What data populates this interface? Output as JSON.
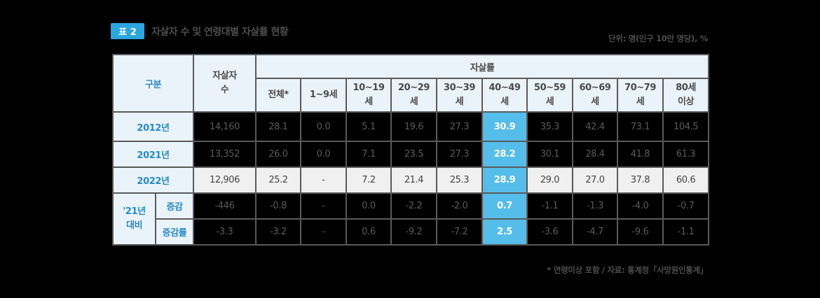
{
  "header": {
    "badge": "표 2",
    "title": "자살자 수 및 연령대별 자살률 현황",
    "unit": "단위: 명(인구 10만 명당), %"
  },
  "table": {
    "col_group": "구분",
    "col_count_line1": "자살자",
    "col_count_line2": "수",
    "col_rate_group": "자살률",
    "rate_columns": [
      {
        "line1": "전체*",
        "line2": ""
      },
      {
        "line1": "1~9세",
        "line2": ""
      },
      {
        "line1": "10~19",
        "line2": "세"
      },
      {
        "line1": "20~29",
        "line2": "세"
      },
      {
        "line1": "30~39",
        "line2": "세"
      },
      {
        "line1": "40~49",
        "line2": "세"
      },
      {
        "line1": "50~59",
        "line2": "세"
      },
      {
        "line1": "60~69",
        "line2": "세"
      },
      {
        "line1": "70~79",
        "line2": "세"
      },
      {
        "line1": "80세",
        "line2": "이상"
      }
    ],
    "highlight_column_index": 5,
    "highlight_color": "#55bde9",
    "rows": [
      {
        "label": "2012년",
        "count": "14,160",
        "rates": [
          "28.1",
          "0.0",
          "5.1",
          "19.6",
          "27.3",
          "30.9",
          "35.3",
          "42.4",
          "73.1",
          "104.5"
        ]
      },
      {
        "label": "2021년",
        "count": "13,352",
        "rates": [
          "26.0",
          "0.0",
          "7.1",
          "23.5",
          "27.3",
          "28.2",
          "30.1",
          "28.4",
          "41.8",
          "61.3"
        ]
      },
      {
        "label": "2022년",
        "count": "12,906",
        "rates": [
          "25.2",
          "-",
          "7.2",
          "21.4",
          "25.3",
          "28.9",
          "29.0",
          "27.0",
          "37.8",
          "60.6"
        ]
      }
    ],
    "compare_group_line1": "'21년",
    "compare_group_line2": "대비",
    "compare_rows": [
      {
        "label": "증감",
        "count": "-446",
        "rates": [
          "-0.8",
          "-",
          "0.0",
          "-2.2",
          "-2.0",
          "0.7",
          "-1.1",
          "-1.3",
          "-4.0",
          "-0.7"
        ]
      },
      {
        "label": "증감률",
        "count": "-3.3",
        "rates": [
          "-3.2",
          "-",
          "0.6",
          "-9.2",
          "-7.2",
          "2.5",
          "-3.6",
          "-4.7",
          "-9.6",
          "-1.1"
        ]
      }
    ]
  },
  "footnote": "* 연령미상 포함 / 자료: 통계청「사망원인통계」"
}
